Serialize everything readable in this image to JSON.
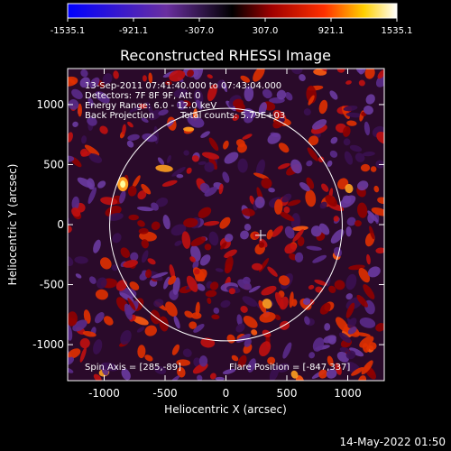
{
  "chart_data": {
    "type": "heatmap",
    "title": "Reconstructed RHESSI Image",
    "xlabel": "Heliocentric X (arcsec)",
    "ylabel": "Heliocentric Y (arcsec)",
    "xlim": [
      -1300,
      1300
    ],
    "ylim": [
      -1300,
      1300
    ],
    "x_ticks": [
      -1000,
      -500,
      0,
      500,
      1000
    ],
    "y_ticks": [
      -1000,
      -500,
      0,
      500,
      1000
    ],
    "colorbar": {
      "range": [
        -1535.1,
        1535.1
      ],
      "ticks": [
        "-1535.1",
        "-921.1",
        "-307.0",
        "307.0",
        "921.1",
        "1535.1"
      ],
      "colors": [
        "#0000ff",
        "#6a2fa0",
        "#000000",
        "#a00000",
        "#ff3000",
        "#ffd000",
        "#ffffff"
      ]
    },
    "annotations": [
      "13-Sep-2011 07:41:40.000 to 07:43:04.000",
      "Detectors: 7F 8F 9F, Att 0",
      "Energy Range: 6.0 - 12.0 keV",
      "Back Projection",
      "Total counts: 5.79E+03"
    ],
    "spin_axis": "Spin Axis = [285,-89]",
    "flare_position": "Flare Position = [-847,337]",
    "solar_limb_radius_arcsec": 955,
    "marker": [
      285,
      -89
    ]
  },
  "footer_date": "14-May-2022 01:50"
}
